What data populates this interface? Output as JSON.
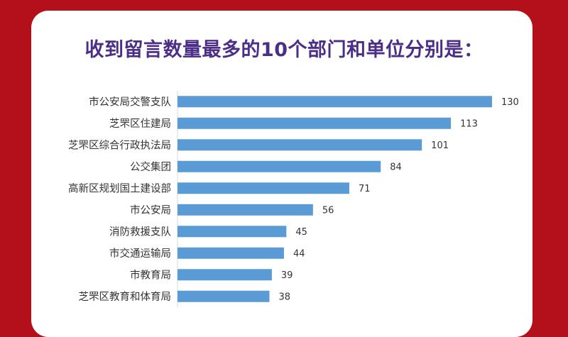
{
  "title": "收到留言数量最多的10个部门和单位分别是：",
  "colors": {
    "background": "#b3101b",
    "bar": "#5b9bd5",
    "title": "#4b2f86"
  },
  "chart_data": {
    "type": "bar",
    "orientation": "horizontal",
    "categories": [
      "市公安局交警支队",
      "芝罘区住建局",
      "芝罘区综合行政执法局",
      "公交集团",
      "高新区规划国土建设部",
      "市公安局",
      "消防救援支队",
      "市交通运输局",
      "市教育局",
      "芝罘区教育和体育局"
    ],
    "values": [
      130,
      113,
      101,
      84,
      71,
      56,
      45,
      44,
      39,
      38
    ],
    "xlim": [
      0,
      130
    ],
    "grid": false,
    "data_labels": true
  }
}
